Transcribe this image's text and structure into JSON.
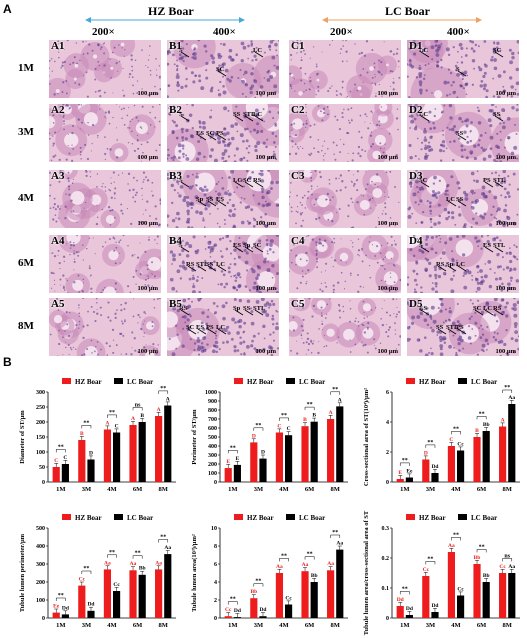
{
  "figure": {
    "panel_a_label": "A",
    "panel_b_label": "B",
    "groups": [
      {
        "name": "HZ Boar",
        "color": "#4aa8d8"
      },
      {
        "name": "LC Boar",
        "color": "#f0a060"
      }
    ],
    "magnifications": [
      "200×",
      "400×",
      "200×",
      "400×"
    ],
    "rows": [
      "1M",
      "3M",
      "4M",
      "6M",
      "8M"
    ],
    "tiles": [
      [
        "A1",
        "B1",
        "C1",
        "D1"
      ],
      [
        "A2",
        "B2",
        "C2",
        "D2"
      ],
      [
        "A3",
        "B3",
        "C3",
        "D3"
      ],
      [
        "A4",
        "B4",
        "C4",
        "D4"
      ],
      [
        "A5",
        "B5",
        "C5",
        "D5"
      ]
    ],
    "scale_bar": "100 μm",
    "annotations": {
      "B1": [
        "S",
        "SC",
        "LC"
      ],
      "D1": [
        "LC",
        "S",
        "SC"
      ],
      "B2": [
        "S",
        "PS",
        "LC",
        "SC",
        "STL",
        "ES",
        "SS"
      ],
      "D2": [
        "LC",
        "SS",
        "SS"
      ],
      "B3": [
        "S",
        "ES",
        "RS",
        "SS",
        "SC",
        "Sp",
        "LC"
      ],
      "D3": [
        "SC",
        "SS",
        "STL",
        "LC",
        "PS"
      ],
      "B4": [
        "S",
        "LC",
        "SC",
        "SS",
        "Sp",
        "STL",
        "ES",
        "RS"
      ],
      "D4": [
        "S",
        "LC",
        "STL",
        "Sp",
        "ES",
        "RS"
      ],
      "B5": [
        "RS",
        "LC",
        "STL",
        "PS",
        "SS",
        "ES",
        "Sp",
        "SC"
      ],
      "D5": [
        "ES",
        "PS",
        "RS",
        "STL",
        "LC",
        "SS",
        "SC"
      ]
    }
  },
  "chart_data": [
    {
      "type": "bar",
      "ylabel": "Diameter of ST/μm",
      "categories": [
        "1M",
        "3M",
        "4M",
        "6M",
        "8M"
      ],
      "ylim": [
        0,
        300
      ],
      "yticks": [
        0,
        50,
        100,
        150,
        200,
        250,
        300
      ],
      "series": [
        {
          "name": "HZ Boar",
          "color": "#ee1c1c",
          "values": [
            50,
            140,
            175,
            190,
            220
          ],
          "labels": [
            "C",
            "B",
            "A",
            "A",
            "A"
          ]
        },
        {
          "name": "LC Boar",
          "color": "#000000",
          "values": [
            60,
            75,
            165,
            200,
            255
          ],
          "labels": [
            "C",
            "D",
            "C",
            "B",
            "A"
          ]
        }
      ],
      "significance": [
        "**",
        "**",
        "**",
        "ns",
        "**"
      ]
    },
    {
      "type": "bar",
      "ylabel": "Perimeter of ST/μm",
      "categories": [
        "1M",
        "3M",
        "4M",
        "6M",
        "8M"
      ],
      "ylim": [
        0,
        1000
      ],
      "yticks": [
        0,
        100,
        200,
        300,
        400,
        500,
        600,
        700,
        800,
        900,
        1000
      ],
      "series": [
        {
          "name": "HZ Boar",
          "color": "#ee1c1c",
          "values": [
            155,
            440,
            550,
            620,
            700
          ],
          "labels": [
            "E",
            "D",
            "C",
            "B",
            "A"
          ]
        },
        {
          "name": "LC Boar",
          "color": "#000000",
          "values": [
            190,
            260,
            520,
            670,
            840
          ],
          "labels": [
            "E",
            "D",
            "C",
            "B",
            "A"
          ]
        }
      ],
      "significance": [
        "**",
        "**",
        "**",
        "**",
        "**"
      ]
    },
    {
      "type": "bar",
      "ylabel": "Cross-sectional area of ST(10⁴)/μm²",
      "categories": [
        "1M",
        "3M",
        "4M",
        "6M",
        "8M"
      ],
      "ylim": [
        0,
        6
      ],
      "yticks": [
        0,
        2,
        4,
        6
      ],
      "series": [
        {
          "name": "HZ Boar",
          "color": "#ee1c1c",
          "values": [
            0.2,
            1.5,
            2.4,
            3.0,
            3.7
          ],
          "labels": [
            "E",
            "D",
            "C",
            "B",
            "A"
          ]
        },
        {
          "name": "LC Boar",
          "color": "#000000",
          "values": [
            0.3,
            0.6,
            2.1,
            3.4,
            5.2
          ],
          "labels": [
            "Ee",
            "Dd",
            "Cc",
            "Bb",
            "Aa"
          ]
        }
      ],
      "significance": [
        "**",
        "**",
        "**",
        "**",
        "**"
      ]
    },
    {
      "type": "bar",
      "ylabel": "Tubule lumen perimeter/μm",
      "categories": [
        "1M",
        "3M",
        "4M",
        "6M",
        "8M"
      ],
      "ylim": [
        0,
        500
      ],
      "yticks": [
        0,
        100,
        200,
        300,
        400,
        500
      ],
      "series": [
        {
          "name": "HZ Boar",
          "color": "#ee1c1c",
          "values": [
            30,
            180,
            270,
            265,
            270
          ],
          "labels": [
            "Ee",
            "Cc",
            "Aa",
            "Aa",
            "Aa"
          ]
        },
        {
          "name": "LC Boar",
          "color": "#000000",
          "values": [
            20,
            40,
            150,
            240,
            355
          ],
          "labels": [
            "Dd",
            "Dd",
            "Cc",
            "Bb",
            "Aa"
          ]
        }
      ],
      "significance": [
        "**",
        "**",
        "**",
        "**",
        "**"
      ]
    },
    {
      "type": "bar",
      "ylabel": "Tubule lumen area(10³)/μm²",
      "categories": [
        "1M",
        "3M",
        "4M",
        "6M",
        "8M"
      ],
      "ylim": [
        0,
        10
      ],
      "yticks": [
        0,
        2,
        4,
        6,
        8,
        10
      ],
      "series": [
        {
          "name": "HZ Boar",
          "color": "#ee1c1c",
          "values": [
            0.2,
            2.2,
            5.0,
            5.2,
            5.3
          ],
          "labels": [
            "Cc",
            "Bb",
            "Aa",
            "Aa",
            "Aa"
          ]
        },
        {
          "name": "LC Boar",
          "color": "#000000",
          "values": [
            0.1,
            0.2,
            1.5,
            4.0,
            7.6
          ],
          "labels": [
            "Dd",
            "Dd",
            "Cc",
            "Bb",
            "Aa"
          ]
        }
      ],
      "significance": [
        "**",
        "**",
        "**",
        "**",
        "**"
      ]
    },
    {
      "type": "bar",
      "ylabel": "Tubule lumen area/cross-sectional area of ST",
      "categories": [
        "1M",
        "3M",
        "4M",
        "6M",
        "8M"
      ],
      "ylim": [
        0,
        0.3
      ],
      "yticks": [
        0.0,
        0.1,
        0.2,
        0.3
      ],
      "series": [
        {
          "name": "HZ Boar",
          "color": "#ee1c1c",
          "values": [
            0.04,
            0.14,
            0.22,
            0.18,
            0.15
          ],
          "labels": [
            "Dd",
            "Cc",
            "Aa",
            "Bb",
            "Cc"
          ]
        },
        {
          "name": "LC Boar",
          "color": "#000000",
          "values": [
            0.01,
            0.02,
            0.075,
            0.12,
            0.15
          ],
          "labels": [
            "Dd",
            "Dd",
            "Cc",
            "Bb",
            "Aa"
          ]
        }
      ],
      "significance": [
        "**",
        "**",
        "**",
        "**",
        "ns"
      ]
    }
  ]
}
